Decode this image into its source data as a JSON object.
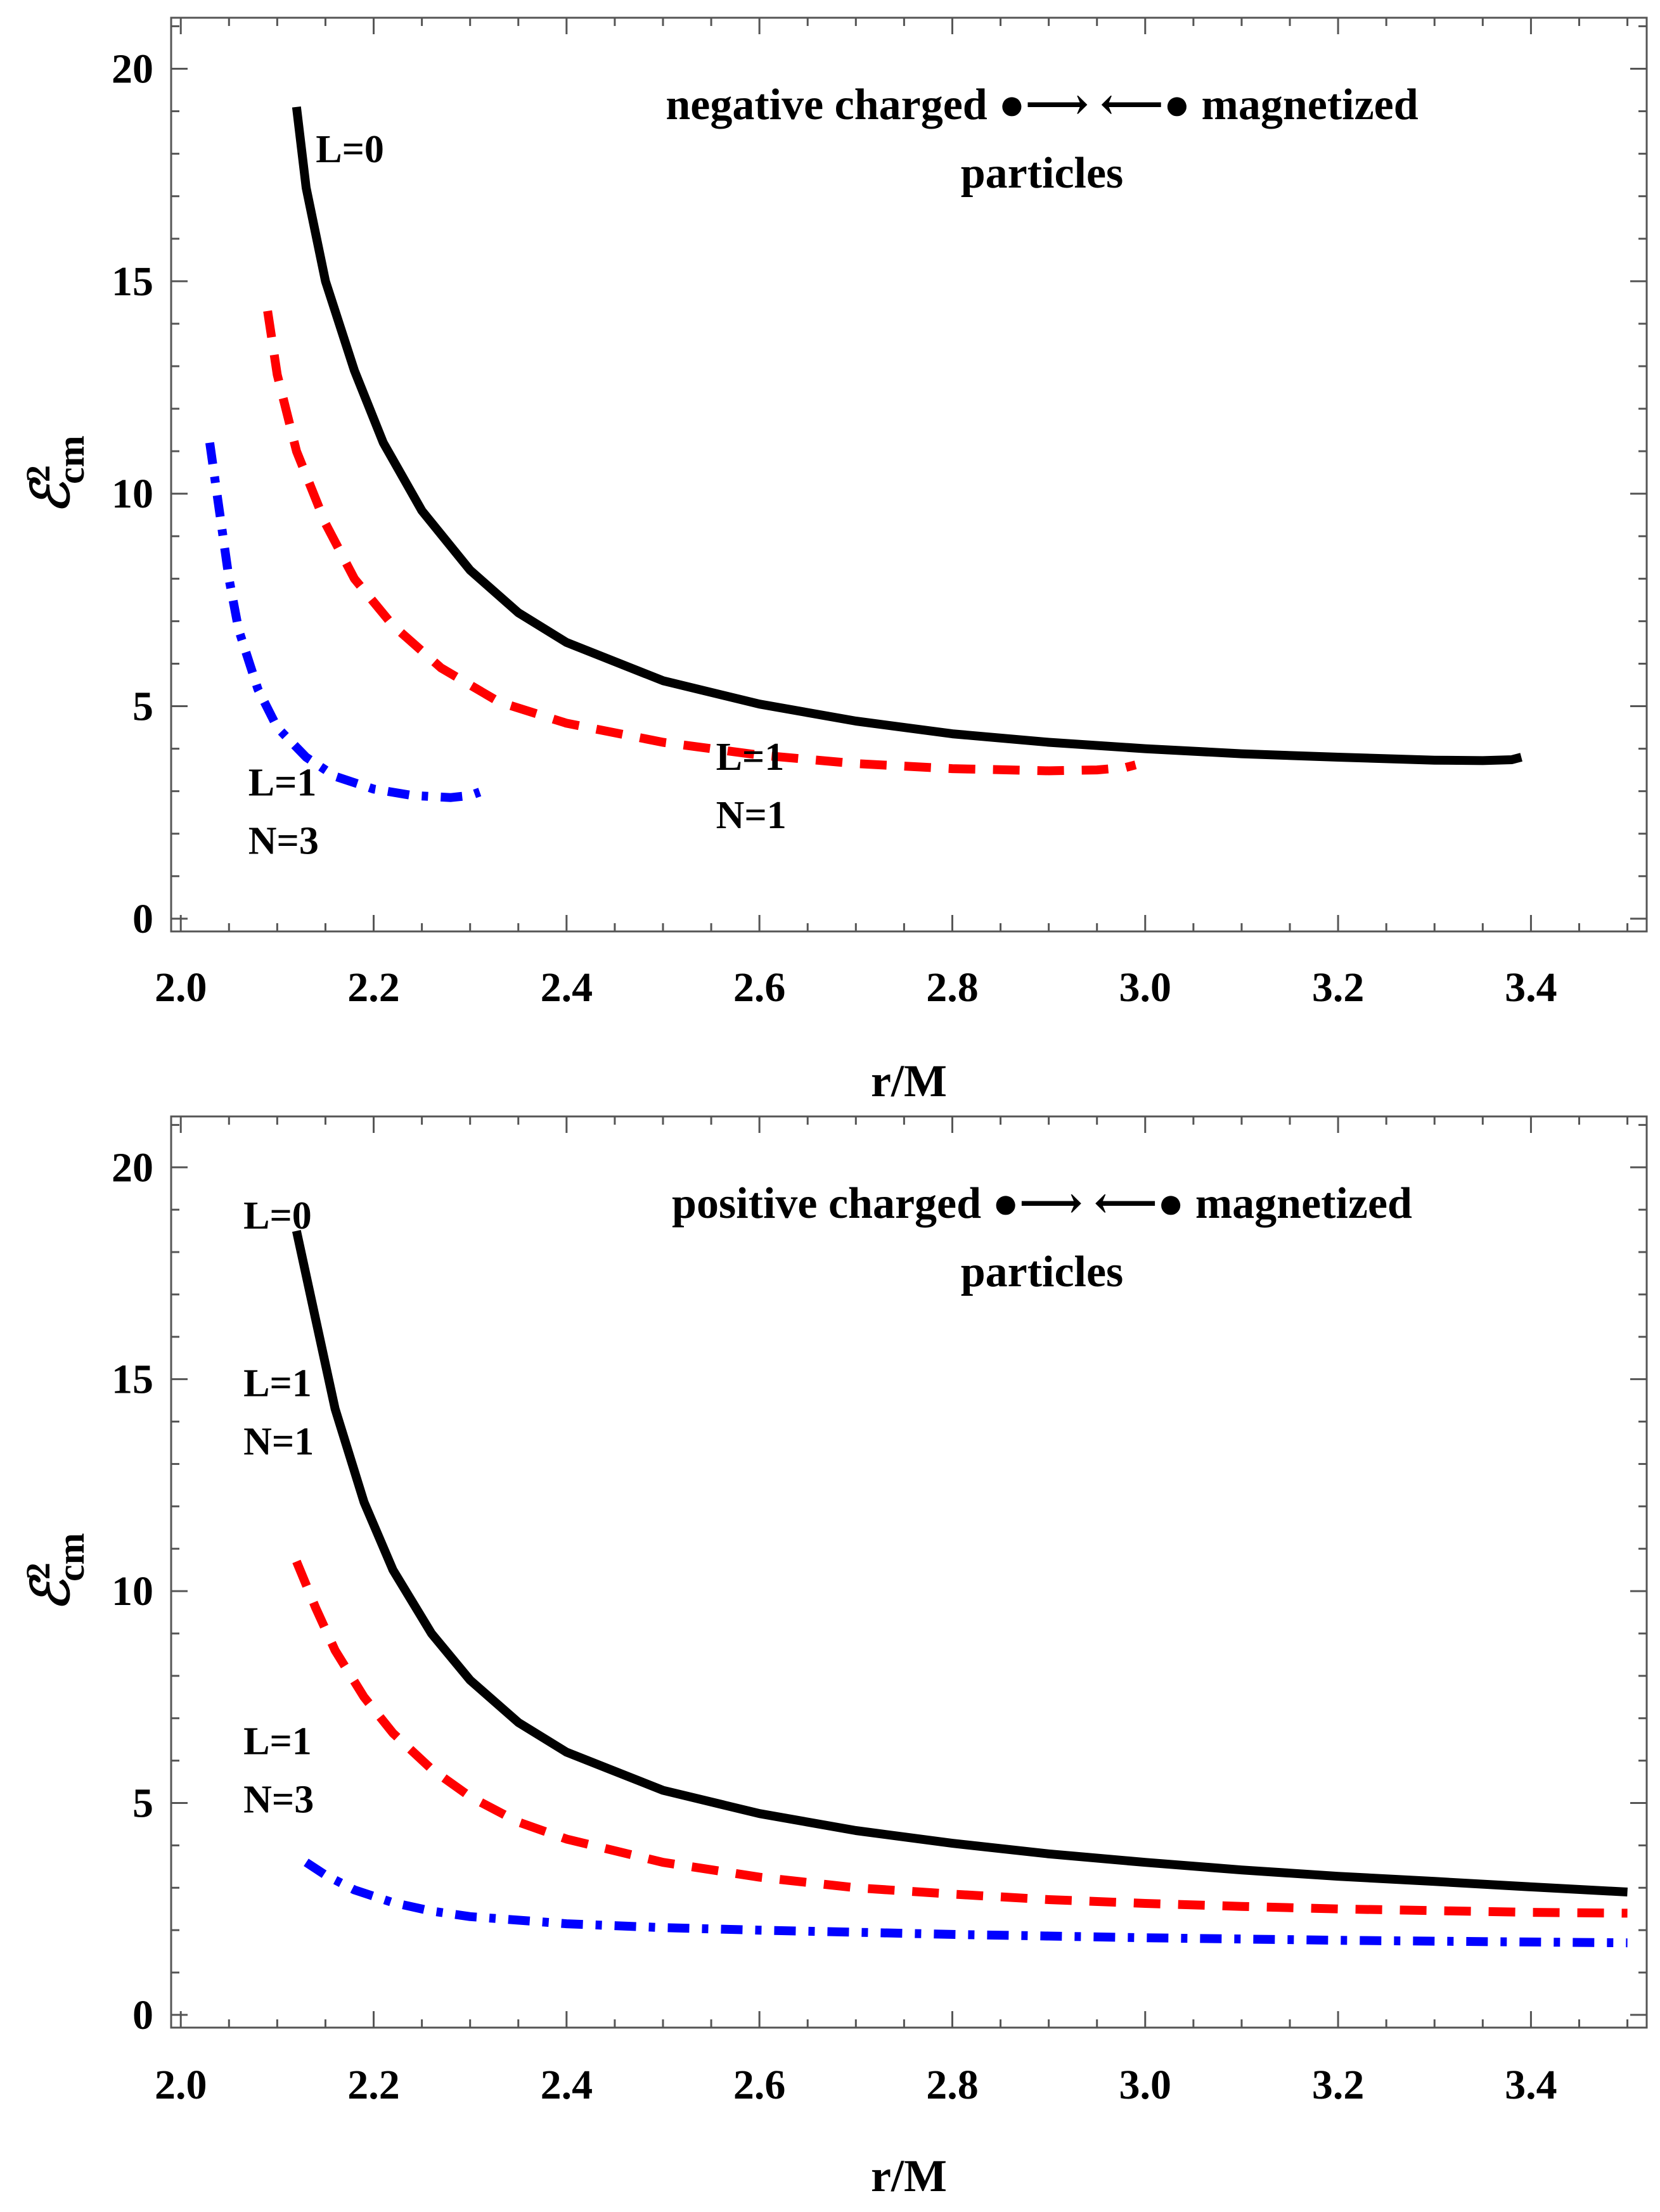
{
  "chart_data": [
    {
      "type": "line",
      "panel": "top",
      "header": {
        "left": "negative charged",
        "right": "magnetized",
        "line2": "particles",
        "symbol_left": "●⟶",
        "symbol_right": "⟵●"
      },
      "xlabel": "r/M",
      "ylabel": {
        "base": "ℰ",
        "sub": "cm",
        "sup": "2"
      },
      "xlim": [
        1.99,
        3.52
      ],
      "ylim": [
        -0.3,
        21.2
      ],
      "xticks": [
        "2.0",
        "2.2",
        "2.4",
        "2.6",
        "2.8",
        "3.0",
        "3.2",
        "3.4"
      ],
      "yticks": [
        "0",
        "5",
        "10",
        "15",
        "20"
      ],
      "series": [
        {
          "name": "L=0",
          "color": "#000000",
          "style": "solid",
          "x": [
            2.12,
            2.13,
            2.15,
            2.18,
            2.21,
            2.25,
            2.3,
            2.35,
            2.4,
            2.5,
            2.6,
            2.7,
            2.8,
            2.9,
            3.0,
            3.1,
            3.2,
            3.3,
            3.35,
            3.38,
            3.39
          ],
          "y": [
            19.1,
            17.2,
            15.0,
            12.9,
            11.2,
            9.6,
            8.2,
            7.2,
            6.5,
            5.6,
            5.05,
            4.65,
            4.35,
            4.15,
            4.0,
            3.88,
            3.8,
            3.73,
            3.72,
            3.74,
            3.8
          ]
        },
        {
          "name": "L=1, N=1",
          "color": "#ff0000",
          "style": "dashed",
          "x": [
            2.09,
            2.1,
            2.12,
            2.15,
            2.18,
            2.22,
            2.27,
            2.33,
            2.4,
            2.5,
            2.6,
            2.7,
            2.8,
            2.9,
            2.95,
            2.98,
            2.99
          ],
          "y": [
            14.3,
            12.8,
            11.0,
            9.3,
            8.0,
            6.9,
            5.9,
            5.1,
            4.6,
            4.15,
            3.85,
            3.65,
            3.53,
            3.48,
            3.5,
            3.56,
            3.62
          ]
        },
        {
          "name": "L=1, N=3",
          "color": "#0000ff",
          "style": "dashdot",
          "x": [
            2.03,
            2.04,
            2.05,
            2.06,
            2.08,
            2.1,
            2.13,
            2.16,
            2.2,
            2.24,
            2.28,
            2.3,
            2.31
          ],
          "y": [
            11.2,
            9.6,
            8.0,
            6.8,
            5.4,
            4.5,
            3.8,
            3.35,
            3.05,
            2.9,
            2.85,
            2.9,
            2.98
          ]
        }
      ],
      "annotations": [
        {
          "lines": [
            "L=0"
          ],
          "x": 2.14,
          "y": 17.8
        },
        {
          "lines": [
            "L=1",
            "N=1"
          ],
          "x": 2.555,
          "y": 3.5
        },
        {
          "lines": [
            "L=1",
            "N=3"
          ],
          "x": 2.07,
          "y": 2.9
        }
      ]
    },
    {
      "type": "line",
      "panel": "bottom",
      "header": {
        "left": "positive charged",
        "right": "magnetized",
        "line2": "particles",
        "symbol_left": "●⟶",
        "symbol_right": "⟵●"
      },
      "xlabel": "r/M",
      "ylabel": {
        "base": "ℰ",
        "sub": "cm",
        "sup": "2"
      },
      "xlim": [
        1.99,
        3.52
      ],
      "ylim": [
        -0.3,
        21.2
      ],
      "xticks": [
        "2.0",
        "2.2",
        "2.4",
        "2.6",
        "2.8",
        "3.0",
        "3.2",
        "3.4"
      ],
      "yticks": [
        "0",
        "5",
        "10",
        "15",
        "20"
      ],
      "series": [
        {
          "name": "L=0",
          "color": "#000000",
          "style": "solid",
          "x": [
            2.12,
            2.14,
            2.16,
            2.19,
            2.22,
            2.26,
            2.3,
            2.35,
            2.4,
            2.5,
            2.6,
            2.7,
            2.8,
            2.9,
            3.0,
            3.1,
            3.2,
            3.3,
            3.4,
            3.5
          ],
          "y": [
            18.5,
            16.4,
            14.3,
            12.1,
            10.5,
            9.0,
            7.9,
            6.9,
            6.2,
            5.3,
            4.75,
            4.35,
            4.05,
            3.8,
            3.6,
            3.42,
            3.27,
            3.15,
            3.02,
            2.9
          ]
        },
        {
          "name": "L=1, N=1",
          "color": "#ff0000",
          "style": "dashed",
          "x": [
            2.12,
            2.14,
            2.16,
            2.19,
            2.22,
            2.26,
            2.3,
            2.35,
            2.4,
            2.5,
            2.6,
            2.7,
            2.8,
            2.9,
            3.0,
            3.1,
            3.2,
            3.3,
            3.4,
            3.5
          ],
          "y": [
            10.7,
            9.6,
            8.6,
            7.5,
            6.65,
            5.8,
            5.15,
            4.55,
            4.15,
            3.6,
            3.25,
            3.0,
            2.85,
            2.72,
            2.63,
            2.56,
            2.5,
            2.46,
            2.42,
            2.4
          ]
        },
        {
          "name": "L=1, N=3",
          "color": "#0000ff",
          "style": "dashdot",
          "x": [
            2.13,
            2.15,
            2.18,
            2.22,
            2.26,
            2.3,
            2.4,
            2.5,
            2.6,
            2.7,
            2.8,
            2.9,
            3.0,
            3.1,
            3.2,
            3.3,
            3.4,
            3.5
          ],
          "y": [
            3.6,
            3.3,
            2.95,
            2.65,
            2.45,
            2.32,
            2.15,
            2.06,
            2.0,
            1.95,
            1.9,
            1.86,
            1.82,
            1.79,
            1.76,
            1.74,
            1.72,
            1.7
          ]
        }
      ],
      "annotations": [
        {
          "lines": [
            "L=0"
          ],
          "x": 2.065,
          "y": 18.55
        },
        {
          "lines": [
            "L=1",
            "N=1"
          ],
          "x": 2.065,
          "y": 14.6
        },
        {
          "lines": [
            "L=1",
            "N=3"
          ],
          "x": 2.065,
          "y": 6.15
        }
      ]
    }
  ]
}
